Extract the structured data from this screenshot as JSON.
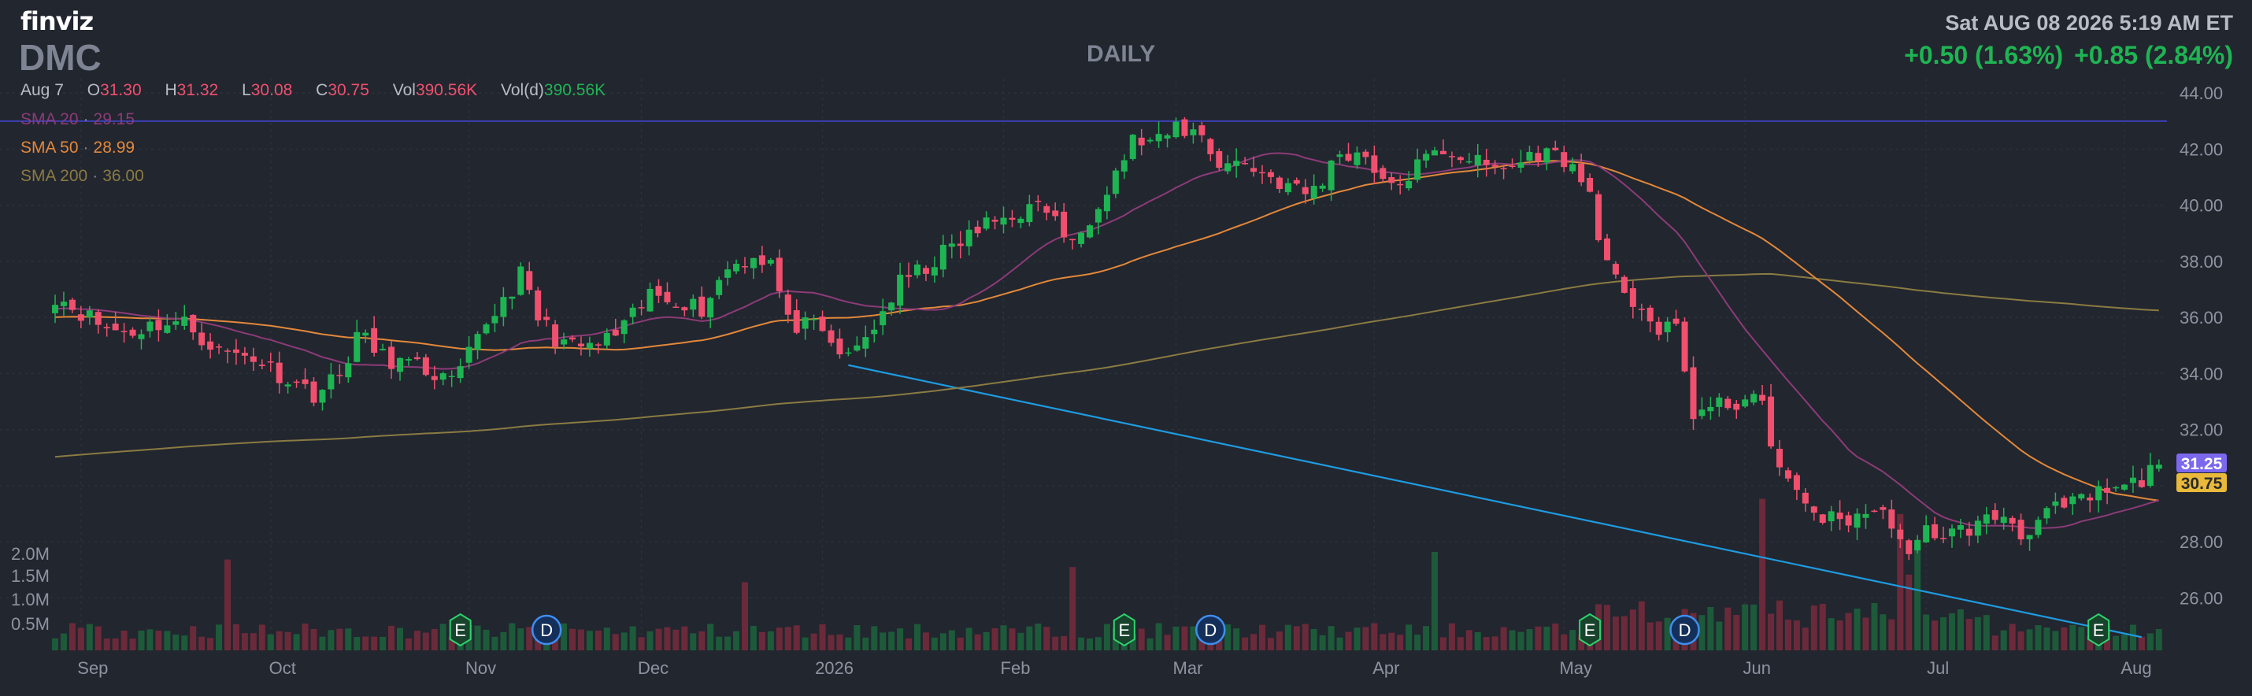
{
  "header": {
    "logo": "finviz",
    "ticker": "DMC",
    "period": "DAILY",
    "timestamp": "Sat AUG 08 2026 5:19 AM ET",
    "change_1": "+0.50 (1.63%)",
    "change_2": "+0.85 (2.84%)"
  },
  "ohlc": {
    "date": "Aug 7",
    "o_label": "O",
    "open": "31.30",
    "h_label": "H",
    "high": "31.32",
    "l_label": "L",
    "low": "30.08",
    "c_label": "C",
    "close": "30.75",
    "vol_label": "Vol",
    "volume": "390.56K",
    "vold_label": "Vol(d)",
    "volume_d": "390.56K"
  },
  "indicators": {
    "sma20_label": "SMA 20",
    "sma20_value": "29.15",
    "sma50_label": "SMA 50",
    "sma50_value": "28.99",
    "sma200_label": "SMA 200",
    "sma200_value": "36.00"
  },
  "colors": {
    "background": "#22262f",
    "up": "#1fb453",
    "down": "#f0506e",
    "sma20": "#8c3b78",
    "sma50": "#e3883a",
    "sma200": "#8a7b42",
    "trendline": "#1e9be0",
    "horizontal_line": "#3d3fb8",
    "last_price_badge": "#7b68ee",
    "close_badge": "#e8b93a"
  },
  "chart_data": {
    "type": "candlestick",
    "ylim": [
      25.0,
      44.4
    ],
    "yticks": [
      "44.00",
      "42.00",
      "40.00",
      "38.00",
      "36.00",
      "34.00",
      "32.00",
      "30.00",
      "28.00",
      "26.00"
    ],
    "volume_ticks": [
      "2.0M",
      "1.5M",
      "1.0M",
      "0.5M"
    ],
    "volume_max": 2.2,
    "x_labels": [
      {
        "label": "Sep",
        "index": 3
      },
      {
        "label": "Oct",
        "index": 25
      },
      {
        "label": "Nov",
        "index": 48
      },
      {
        "label": "Dec",
        "index": 68
      },
      {
        "label": "2026",
        "index": 89
      },
      {
        "label": "Feb",
        "index": 110
      },
      {
        "label": "Mar",
        "index": 130
      },
      {
        "label": "Apr",
        "index": 153
      },
      {
        "label": "May",
        "index": 175
      },
      {
        "label": "Jun",
        "index": 196
      },
      {
        "label": "Jul",
        "index": 217
      },
      {
        "label": "Aug",
        "index": 240
      }
    ],
    "price_badges": [
      {
        "value": 31.25,
        "label": "31.25",
        "color": "#7b68ee"
      },
      {
        "value": 30.75,
        "label": "30.75",
        "color": "#e8b93a"
      }
    ],
    "horizontal_line": 43.0,
    "trendline": {
      "start_index": 92,
      "start_value": 34.3,
      "end_index": 242,
      "end_value": 24.6
    },
    "events": [
      {
        "type": "E",
        "index": 47
      },
      {
        "type": "D",
        "index": 57
      },
      {
        "type": "E",
        "index": 124
      },
      {
        "type": "D",
        "index": 134
      },
      {
        "type": "E",
        "index": 178
      },
      {
        "type": "D",
        "index": 189
      },
      {
        "type": "E",
        "index": 237
      }
    ],
    "keypoints": [
      [
        0,
        36.8
      ],
      [
        3,
        36.2
      ],
      [
        6,
        35.6
      ],
      [
        9,
        35.5
      ],
      [
        12,
        35.8
      ],
      [
        15,
        35.8
      ],
      [
        19,
        34.8
      ],
      [
        23,
        34.6
      ],
      [
        26,
        34.0
      ],
      [
        30,
        33.3
      ],
      [
        33,
        33.9
      ],
      [
        35,
        35.4
      ],
      [
        38,
        34.6
      ],
      [
        41,
        34.3
      ],
      [
        44,
        34.0
      ],
      [
        46,
        33.6
      ],
      [
        48,
        34.6
      ],
      [
        50,
        35.8
      ],
      [
        54,
        37.5
      ],
      [
        56,
        36.0
      ],
      [
        58,
        35.3
      ],
      [
        60,
        34.9
      ],
      [
        63,
        35.0
      ],
      [
        66,
        35.6
      ],
      [
        69,
        36.8
      ],
      [
        72,
        36.7
      ],
      [
        75,
        36.3
      ],
      [
        78,
        37.8
      ],
      [
        81,
        38.2
      ],
      [
        83,
        38.0
      ],
      [
        85,
        35.8
      ],
      [
        88,
        35.6
      ],
      [
        92,
        34.5
      ],
      [
        95,
        35.7
      ],
      [
        98,
        37.2
      ],
      [
        101,
        37.8
      ],
      [
        104,
        38.5
      ],
      [
        108,
        39.3
      ],
      [
        112,
        39.8
      ],
      [
        115,
        39.9
      ],
      [
        118,
        38.5
      ],
      [
        121,
        40.2
      ],
      [
        123,
        41.2
      ],
      [
        125,
        42.3
      ],
      [
        128,
        42.2
      ],
      [
        130,
        42.8
      ],
      [
        133,
        42.5
      ],
      [
        135,
        41.5
      ],
      [
        138,
        41.5
      ],
      [
        141,
        41.0
      ],
      [
        145,
        40.4
      ],
      [
        147,
        40.9
      ],
      [
        149,
        41.9
      ],
      [
        152,
        41.8
      ],
      [
        155,
        40.5
      ],
      [
        158,
        41.4
      ],
      [
        161,
        42.0
      ],
      [
        164,
        41.7
      ],
      [
        166,
        41.3
      ],
      [
        169,
        41.4
      ],
      [
        172,
        41.9
      ],
      [
        175,
        41.7
      ],
      [
        178,
        40.4
      ],
      [
        180,
        37.8
      ],
      [
        182,
        36.6
      ],
      [
        184,
        36.5
      ],
      [
        186,
        35.4
      ],
      [
        188,
        35.6
      ],
      [
        190,
        32.6
      ],
      [
        193,
        32.8
      ],
      [
        196,
        33.1
      ],
      [
        198,
        32.8
      ],
      [
        200,
        30.6
      ],
      [
        202,
        29.6
      ],
      [
        205,
        28.9
      ],
      [
        207,
        28.7
      ],
      [
        210,
        29.1
      ],
      [
        213,
        28.8
      ],
      [
        215,
        27.3
      ],
      [
        217,
        28.4
      ],
      [
        220,
        28.3
      ],
      [
        223,
        28.6
      ],
      [
        226,
        29.0
      ],
      [
        228,
        28.3
      ],
      [
        231,
        29.0
      ],
      [
        234,
        29.3
      ],
      [
        237,
        29.7
      ],
      [
        240,
        29.9
      ],
      [
        242,
        30.2
      ],
      [
        244,
        30.75
      ]
    ]
  }
}
